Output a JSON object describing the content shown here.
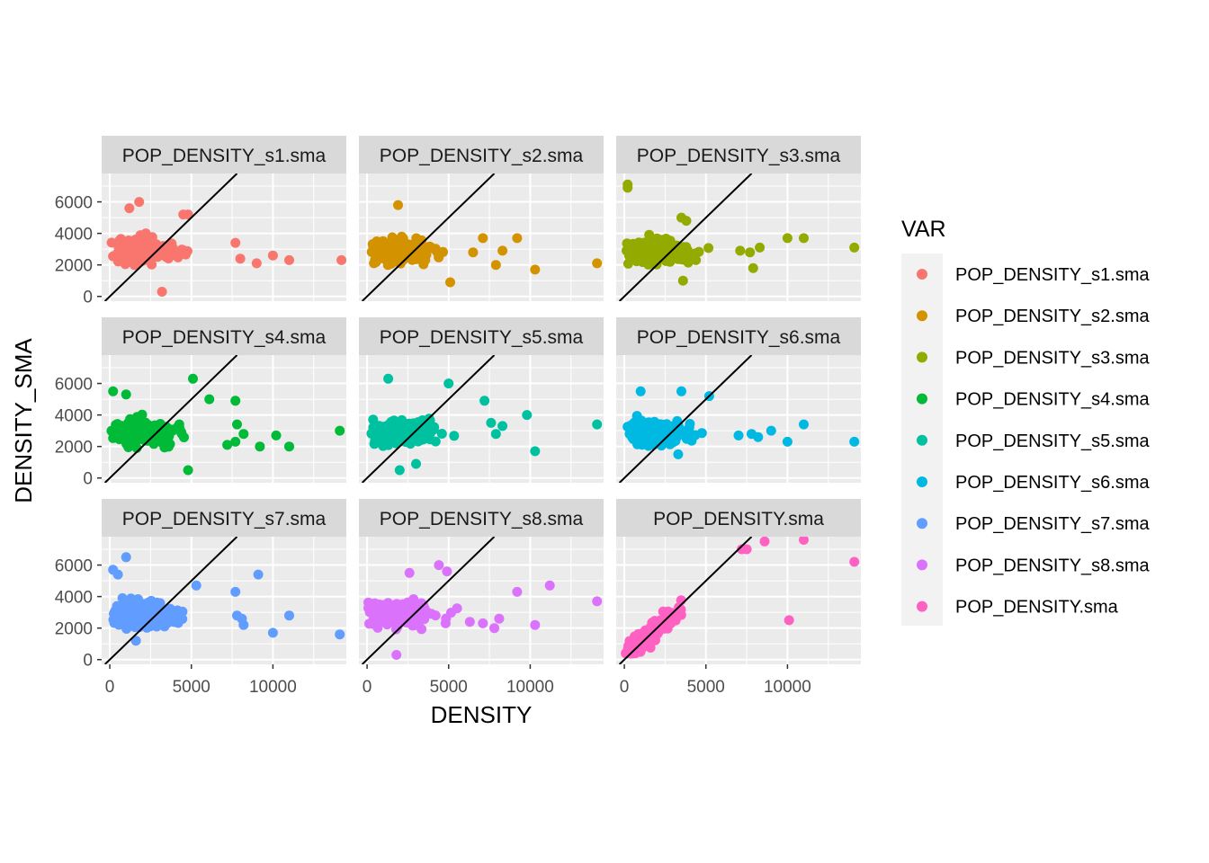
{
  "chart_data": {
    "type": "scatter",
    "facet_layout": "3x3",
    "xlabel": "DENSITY",
    "ylabel": "DENSITY_SMA",
    "xlim": [
      -500,
      14500
    ],
    "ylim": [
      -300,
      7800
    ],
    "x_ticks": [
      0,
      5000,
      10000
    ],
    "y_ticks": [
      0,
      2000,
      4000,
      6000
    ],
    "reference_line": "y = x",
    "grid": true,
    "legend": {
      "title": "VAR",
      "position": "right",
      "items": [
        {
          "label": "POP_DENSITY_s1.sma",
          "color": "#F8766D"
        },
        {
          "label": "POP_DENSITY_s2.sma",
          "color": "#D39200"
        },
        {
          "label": "POP_DENSITY_s3.sma",
          "color": "#93AA00"
        },
        {
          "label": "POP_DENSITY_s4.sma",
          "color": "#00BA38"
        },
        {
          "label": "POP_DENSITY_s5.sma",
          "color": "#00C19F"
        },
        {
          "label": "POP_DENSITY_s6.sma",
          "color": "#00B9E3"
        },
        {
          "label": "POP_DENSITY_s7.sma",
          "color": "#619CFF"
        },
        {
          "label": "POP_DENSITY_s8.sma",
          "color": "#DB72FB"
        },
        {
          "label": "POP_DENSITY.sma",
          "color": "#FF61C3"
        }
      ]
    },
    "panels": [
      {
        "strip": "POP_DENSITY_s1.sma",
        "color": "#F8766D",
        "mode": "flat",
        "outliers": [
          [
            1200,
            5600
          ],
          [
            1800,
            6000
          ],
          [
            4500,
            5200
          ],
          [
            4800,
            5200
          ],
          [
            7700,
            3400
          ],
          [
            8000,
            2400
          ],
          [
            9000,
            2100
          ],
          [
            10000,
            2600
          ],
          [
            11000,
            2300
          ],
          [
            14200,
            2300
          ],
          [
            3200,
            300
          ]
        ]
      },
      {
        "strip": "POP_DENSITY_s2.sma",
        "color": "#D39200",
        "mode": "flat",
        "outliers": [
          [
            1900,
            5800
          ],
          [
            6500,
            2800
          ],
          [
            7100,
            3700
          ],
          [
            7900,
            2000
          ],
          [
            8300,
            2900
          ],
          [
            9200,
            3700
          ],
          [
            10300,
            1700
          ],
          [
            14100,
            2100
          ],
          [
            5100,
            900
          ]
        ]
      },
      {
        "strip": "POP_DENSITY_s3.sma",
        "color": "#93AA00",
        "mode": "flat",
        "outliers": [
          [
            200,
            7100
          ],
          [
            200,
            6900
          ],
          [
            3500,
            5000
          ],
          [
            3800,
            4800
          ],
          [
            7100,
            2900
          ],
          [
            7700,
            2800
          ],
          [
            7900,
            1800
          ],
          [
            8300,
            3100
          ],
          [
            10000,
            3700
          ],
          [
            11000,
            3700
          ],
          [
            14100,
            3100
          ],
          [
            3600,
            1000
          ]
        ]
      },
      {
        "strip": "POP_DENSITY_s4.sma",
        "color": "#00BA38",
        "mode": "flat",
        "outliers": [
          [
            200,
            5500
          ],
          [
            1000,
            5300
          ],
          [
            5100,
            6300
          ],
          [
            6100,
            5000
          ],
          [
            7700,
            4900
          ],
          [
            7800,
            3400
          ],
          [
            7200,
            2100
          ],
          [
            8200,
            2800
          ],
          [
            7700,
            2300
          ],
          [
            9200,
            2000
          ],
          [
            10200,
            2700
          ],
          [
            11000,
            2000
          ],
          [
            14100,
            3000
          ],
          [
            4800,
            500
          ]
        ]
      },
      {
        "strip": "POP_DENSITY_s5.sma",
        "color": "#00C19F",
        "mode": "flat",
        "outliers": [
          [
            1300,
            6300
          ],
          [
            5000,
            6000
          ],
          [
            7200,
            4900
          ],
          [
            7600,
            3500
          ],
          [
            7900,
            2800
          ],
          [
            8300,
            3300
          ],
          [
            9800,
            4000
          ],
          [
            10300,
            1700
          ],
          [
            14100,
            3400
          ],
          [
            2000,
            500
          ],
          [
            3000,
            900
          ]
        ]
      },
      {
        "strip": "POP_DENSITY_s6.sma",
        "color": "#00B9E3",
        "mode": "flat",
        "outliers": [
          [
            1000,
            5500
          ],
          [
            3500,
            5500
          ],
          [
            5200,
            5200
          ],
          [
            7000,
            2700
          ],
          [
            7800,
            2800
          ],
          [
            8200,
            2600
          ],
          [
            9000,
            3000
          ],
          [
            10000,
            2300
          ],
          [
            11000,
            3400
          ],
          [
            14100,
            2300
          ],
          [
            3300,
            1500
          ]
        ]
      },
      {
        "strip": "POP_DENSITY_s7.sma",
        "color": "#619CFF",
        "mode": "flat",
        "outliers": [
          [
            200,
            5700
          ],
          [
            500,
            5400
          ],
          [
            1000,
            6500
          ],
          [
            5300,
            4700
          ],
          [
            7700,
            4300
          ],
          [
            7800,
            2800
          ],
          [
            8100,
            2600
          ],
          [
            8200,
            2200
          ],
          [
            9100,
            5400
          ],
          [
            10000,
            1700
          ],
          [
            11000,
            2800
          ],
          [
            14100,
            1600
          ],
          [
            1600,
            1200
          ]
        ]
      },
      {
        "strip": "POP_DENSITY_s8.sma",
        "color": "#DB72FB",
        "mode": "flat",
        "outliers": [
          [
            2600,
            5500
          ],
          [
            4400,
            6000
          ],
          [
            4900,
            5600
          ],
          [
            6300,
            2400
          ],
          [
            7100,
            2300
          ],
          [
            7800,
            2000
          ],
          [
            8100,
            2600
          ],
          [
            9200,
            4300
          ],
          [
            10300,
            2200
          ],
          [
            11200,
            4700
          ],
          [
            14100,
            3700
          ],
          [
            1800,
            300
          ]
        ]
      },
      {
        "strip": "POP_DENSITY.sma",
        "color": "#FF61C3",
        "mode": "diag",
        "outliers": [
          [
            7200,
            7000
          ],
          [
            7500,
            7000
          ],
          [
            8600,
            7500
          ],
          [
            11000,
            7600
          ],
          [
            14100,
            6200
          ],
          [
            10100,
            2500
          ]
        ]
      }
    ]
  }
}
